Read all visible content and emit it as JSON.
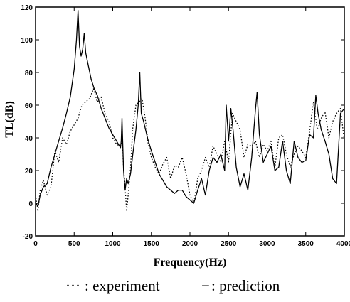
{
  "chart_data": {
    "type": "line",
    "title": "",
    "xlabel": "Frequency(Hz)",
    "ylabel": "TL(dB)",
    "xlim": [
      0,
      4000
    ],
    "ylim": [
      -20,
      120
    ],
    "xticks": [
      0,
      500,
      1000,
      1500,
      2000,
      2500,
      3000,
      3500,
      4000
    ],
    "yticks": [
      -20,
      0,
      20,
      40,
      60,
      80,
      100,
      120
    ],
    "grid": false,
    "legend": {
      "placement": "bottom",
      "experiment_marker": "···",
      "experiment_text": ": experiment",
      "prediction_marker": "−",
      "prediction_text": ": prediction"
    },
    "series": [
      {
        "name": "experiment",
        "style": "dotted",
        "x": [
          0,
          30,
          60,
          100,
          150,
          200,
          250,
          300,
          350,
          400,
          450,
          500,
          550,
          600,
          650,
          700,
          750,
          800,
          850,
          900,
          950,
          1000,
          1050,
          1100,
          1120,
          1140,
          1160,
          1180,
          1200,
          1230,
          1260,
          1300,
          1340,
          1380,
          1420,
          1460,
          1500,
          1550,
          1600,
          1650,
          1700,
          1750,
          1800,
          1850,
          1900,
          1950,
          2000,
          2050,
          2100,
          2150,
          2200,
          2250,
          2300,
          2350,
          2400,
          2450,
          2500,
          2550,
          2600,
          2650,
          2700,
          2750,
          2800,
          2850,
          2900,
          2950,
          3000,
          3050,
          3100,
          3150,
          3200,
          3250,
          3300,
          3350,
          3400,
          3450,
          3500,
          3550,
          3600,
          3650,
          3700,
          3750,
          3800,
          3850,
          3900,
          3950,
          4000
        ],
        "y": [
          5,
          -5,
          8,
          14,
          5,
          10,
          32,
          25,
          40,
          36,
          44,
          48,
          52,
          60,
          62,
          64,
          70,
          62,
          65,
          55,
          50,
          40,
          36,
          35,
          38,
          22,
          10,
          -5,
          5,
          22,
          46,
          60,
          62,
          64,
          52,
          36,
          28,
          22,
          18,
          24,
          28,
          15,
          23,
          22,
          28,
          18,
          5,
          0,
          15,
          20,
          28,
          22,
          35,
          30,
          25,
          38,
          25,
          55,
          50,
          45,
          28,
          36,
          35,
          38,
          28,
          36,
          32,
          38,
          22,
          40,
          42,
          30,
          22,
          30,
          35,
          32,
          28,
          44,
          62,
          45,
          52,
          56,
          40,
          50,
          55,
          58,
          38
        ]
      },
      {
        "name": "prediction",
        "style": "solid",
        "x": [
          0,
          30,
          60,
          100,
          150,
          200,
          250,
          300,
          350,
          400,
          450,
          500,
          530,
          550,
          570,
          590,
          610,
          630,
          650,
          680,
          720,
          760,
          800,
          850,
          900,
          950,
          1000,
          1050,
          1100,
          1110,
          1120,
          1140,
          1160,
          1180,
          1200,
          1230,
          1260,
          1300,
          1330,
          1350,
          1370,
          1400,
          1450,
          1500,
          1550,
          1600,
          1650,
          1700,
          1750,
          1800,
          1850,
          1900,
          1950,
          2000,
          2050,
          2100,
          2150,
          2200,
          2250,
          2300,
          2350,
          2400,
          2450,
          2470,
          2500,
          2530,
          2560,
          2600,
          2650,
          2700,
          2750,
          2800,
          2850,
          2870,
          2900,
          2950,
          3000,
          3050,
          3100,
          3150,
          3200,
          3250,
          3300,
          3350,
          3400,
          3450,
          3500,
          3550,
          3600,
          3630,
          3660,
          3700,
          3750,
          3800,
          3850,
          3900,
          3950,
          4000
        ],
        "y": [
          0,
          -2,
          5,
          10,
          12,
          22,
          30,
          38,
          46,
          55,
          65,
          82,
          100,
          118,
          96,
          90,
          94,
          104,
          92,
          85,
          76,
          70,
          66,
          58,
          52,
          46,
          42,
          38,
          34,
          38,
          52,
          20,
          8,
          15,
          12,
          18,
          30,
          45,
          60,
          80,
          55,
          50,
          40,
          32,
          25,
          18,
          14,
          10,
          8,
          6,
          8,
          8,
          4,
          2,
          0,
          8,
          15,
          5,
          20,
          28,
          25,
          30,
          20,
          60,
          38,
          58,
          44,
          22,
          10,
          18,
          8,
          28,
          58,
          68,
          42,
          25,
          30,
          35,
          20,
          22,
          38,
          20,
          12,
          38,
          28,
          25,
          26,
          42,
          40,
          66,
          55,
          45,
          38,
          30,
          15,
          12,
          55,
          58
        ]
      }
    ]
  }
}
